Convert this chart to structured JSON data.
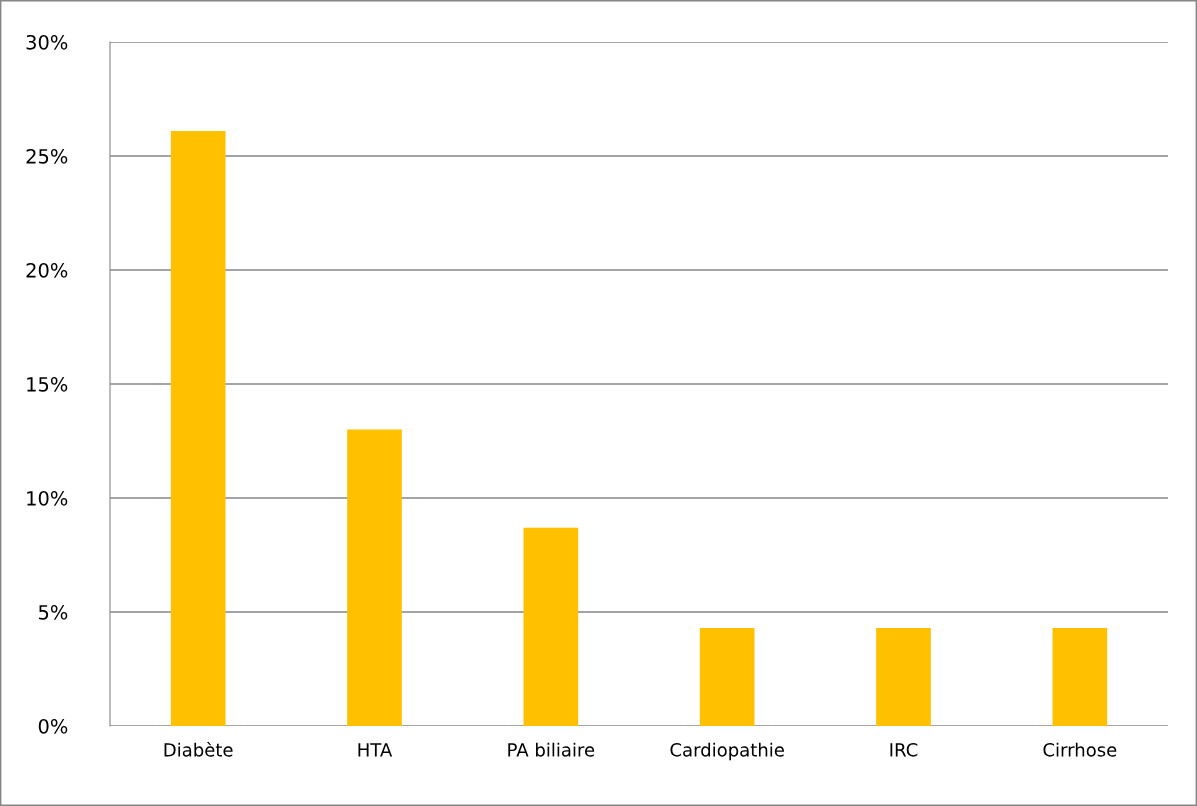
{
  "chart_data": {
    "type": "bar",
    "categories": [
      "Diabète",
      "HTA",
      "PA biliaire",
      "Cardiopathie",
      "IRC",
      "Cirrhose"
    ],
    "values": [
      26.1,
      13.0,
      8.7,
      4.3,
      4.3,
      4.3
    ],
    "color": "#ffc000",
    "ylim": [
      0,
      30
    ],
    "yticks": [
      {
        "value": 0,
        "label": "0%"
      },
      {
        "value": 5,
        "label": "5%"
      },
      {
        "value": 10,
        "label": "10%"
      },
      {
        "value": 15,
        "label": "15%"
      },
      {
        "value": 20,
        "label": "20%"
      },
      {
        "value": 25,
        "label": "25%"
      },
      {
        "value": 30,
        "label": "30%"
      }
    ],
    "grid": "y",
    "legend": false
  }
}
